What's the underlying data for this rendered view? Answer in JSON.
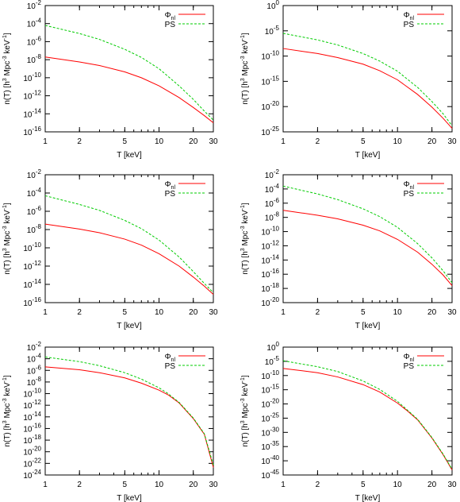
{
  "chart_data": [
    {
      "type": "line",
      "xlabel": "T [keV]",
      "ylabel": "n(T) [h3 Mpc-3 keV-1]",
      "xscale": "log",
      "yscale": "log",
      "xlim": [
        1,
        30
      ],
      "ylim_exp": [
        -16,
        -2
      ],
      "xticks": [
        1,
        2,
        5,
        10,
        20,
        30
      ],
      "yticks_exp": [
        -16,
        -14,
        -12,
        -10,
        -8,
        -6,
        -4,
        -2
      ],
      "legend": "top-right",
      "series": [
        {
          "name": "Φnl",
          "legend_main": "Φ",
          "legend_sub": "nl",
          "color": "#ff0000",
          "dash": "solid",
          "x": [
            1,
            2,
            3,
            5,
            7,
            10,
            15,
            20,
            25,
            30
          ],
          "y_exp": [
            -7.7,
            -8.25,
            -8.65,
            -9.35,
            -10.0,
            -10.9,
            -12.2,
            -13.3,
            -14.2,
            -15.0
          ]
        },
        {
          "name": "PS",
          "legend_main": "PS",
          "legend_sub": "",
          "color": "#00cc00",
          "dash": "dashed",
          "x": [
            1,
            2,
            3,
            5,
            7,
            10,
            15,
            20,
            25,
            30
          ],
          "y_exp": [
            -4.2,
            -5.1,
            -5.75,
            -6.85,
            -7.75,
            -9.0,
            -10.9,
            -12.4,
            -13.7,
            -14.7
          ]
        }
      ]
    },
    {
      "type": "line",
      "xlabel": "T [keV]",
      "ylabel": "n(T) [h3 Mpc-3 keV-1]",
      "xscale": "log",
      "yscale": "log",
      "xlim": [
        1,
        30
      ],
      "ylim_exp": [
        -25,
        0
      ],
      "xticks": [
        1,
        2,
        5,
        10,
        20,
        30
      ],
      "yticks_exp": [
        -25,
        -20,
        -15,
        -10,
        -5,
        0
      ],
      "legend": "top-right",
      "series": [
        {
          "name": "Φnl",
          "legend_main": "Φ",
          "legend_sub": "nl",
          "color": "#ff0000",
          "dash": "solid",
          "x": [
            1,
            2,
            3,
            5,
            7,
            10,
            15,
            20,
            25,
            30
          ],
          "y_exp": [
            -8.5,
            -9.5,
            -10.3,
            -11.6,
            -12.9,
            -14.7,
            -17.6,
            -20.1,
            -22.3,
            -24.3
          ]
        },
        {
          "name": "PS",
          "legend_main": "PS",
          "legend_sub": "",
          "color": "#00cc00",
          "dash": "dashed",
          "x": [
            1,
            2,
            3,
            5,
            7,
            10,
            15,
            20,
            25,
            30
          ],
          "y_exp": [
            -5.5,
            -6.8,
            -7.8,
            -9.5,
            -11.0,
            -13.0,
            -16.2,
            -19.0,
            -21.4,
            -23.8
          ]
        }
      ]
    },
    {
      "type": "line",
      "xlabel": "T [keV]",
      "ylabel": "n(T) [h3 Mpc-3 keV-1]",
      "xscale": "log",
      "yscale": "log",
      "xlim": [
        1,
        30
      ],
      "ylim_exp": [
        -16,
        -2
      ],
      "xticks": [
        1,
        2,
        5,
        10,
        20,
        30
      ],
      "yticks_exp": [
        -16,
        -14,
        -12,
        -10,
        -8,
        -6,
        -4,
        -2
      ],
      "legend": "top-right",
      "series": [
        {
          "name": "Φnl",
          "legend_main": "Φ",
          "legend_sub": "nl",
          "color": "#ff0000",
          "dash": "solid",
          "x": [
            1,
            2,
            3,
            5,
            7,
            10,
            15,
            20,
            25,
            30
          ],
          "y_exp": [
            -7.4,
            -7.95,
            -8.35,
            -9.05,
            -9.7,
            -10.65,
            -12.0,
            -13.2,
            -14.2,
            -15.1
          ]
        },
        {
          "name": "PS",
          "legend_main": "PS",
          "legend_sub": "",
          "color": "#00cc00",
          "dash": "dashed",
          "x": [
            1,
            2,
            3,
            5,
            7,
            10,
            15,
            20,
            25,
            30
          ],
          "y_exp": [
            -4.3,
            -5.25,
            -5.9,
            -7.0,
            -7.9,
            -9.15,
            -11.0,
            -12.6,
            -13.9,
            -14.9
          ]
        }
      ]
    },
    {
      "type": "line",
      "xlabel": "T [keV]",
      "ylabel": "n(T) [h3 Mpc-3 keV-1]",
      "xscale": "log",
      "yscale": "log",
      "xlim": [
        1,
        30
      ],
      "ylim_exp": [
        -20,
        -2
      ],
      "xticks": [
        1,
        2,
        5,
        10,
        20,
        30
      ],
      "yticks_exp": [
        -20,
        -18,
        -16,
        -14,
        -12,
        -10,
        -8,
        -6,
        -4,
        -2
      ],
      "legend": "top-right",
      "series": [
        {
          "name": "Φnl",
          "legend_main": "Φ",
          "legend_sub": "nl",
          "color": "#ff0000",
          "dash": "solid",
          "x": [
            1,
            2,
            3,
            5,
            7,
            10,
            15,
            20,
            25,
            30
          ],
          "y_exp": [
            -7.0,
            -7.7,
            -8.2,
            -9.1,
            -9.9,
            -11.1,
            -12.9,
            -14.6,
            -16.1,
            -17.6
          ]
        },
        {
          "name": "PS",
          "legend_main": "PS",
          "legend_sub": "",
          "color": "#00cc00",
          "dash": "dashed",
          "x": [
            1,
            2,
            3,
            5,
            7,
            10,
            15,
            20,
            25,
            30
          ],
          "y_exp": [
            -3.6,
            -4.7,
            -5.5,
            -6.8,
            -7.9,
            -9.4,
            -11.7,
            -13.7,
            -15.5,
            -17.2
          ]
        }
      ]
    },
    {
      "type": "line",
      "xlabel": "T [keV]",
      "ylabel": "n(T) [h3 Mpc-3 keV-1]",
      "xscale": "log",
      "yscale": "log",
      "xlim": [
        1,
        30
      ],
      "ylim_exp": [
        -24,
        -2
      ],
      "xticks": [
        1,
        2,
        5,
        10,
        20,
        30
      ],
      "yticks_exp": [
        -24,
        -22,
        -20,
        -18,
        -16,
        -14,
        -12,
        -10,
        -8,
        -6,
        -4,
        -2
      ],
      "legend": "top-right",
      "series": [
        {
          "name": "Φnl",
          "legend_main": "Φ",
          "legend_sub": "nl",
          "color": "#ff0000",
          "dash": "solid",
          "x": [
            1,
            2,
            3,
            5,
            7,
            10,
            12,
            15,
            20,
            25,
            30
          ],
          "y_exp": [
            -5.4,
            -5.9,
            -6.4,
            -7.3,
            -8.2,
            -9.4,
            -10.2,
            -11.6,
            -14.3,
            -17.0,
            -22.7
          ]
        },
        {
          "name": "PS",
          "legend_main": "PS",
          "legend_sub": "",
          "color": "#00cc00",
          "dash": "dashed",
          "x": [
            1,
            2,
            3,
            5,
            7,
            10,
            12,
            15,
            20,
            25,
            30
          ],
          "y_exp": [
            -3.7,
            -4.5,
            -5.2,
            -6.4,
            -7.5,
            -9.0,
            -10.0,
            -11.5,
            -14.2,
            -16.9,
            -22.3
          ]
        }
      ]
    },
    {
      "type": "line",
      "xlabel": "T [keV]",
      "ylabel": "n(T) [h3 Mpc-3 keV-1]",
      "xscale": "log",
      "yscale": "log",
      "xlim": [
        1,
        30
      ],
      "ylim_exp": [
        -45,
        0
      ],
      "xticks": [
        1,
        2,
        5,
        10,
        20,
        30
      ],
      "yticks_exp": [
        -45,
        -40,
        -35,
        -30,
        -25,
        -20,
        -15,
        -10,
        -5,
        0
      ],
      "legend": "top-right",
      "series": [
        {
          "name": "Φnl",
          "legend_main": "Φ",
          "legend_sub": "nl",
          "color": "#ff0000",
          "dash": "solid",
          "x": [
            1,
            2,
            3,
            5,
            7,
            10,
            12,
            15,
            20,
            25,
            30
          ],
          "y_exp": [
            -7.5,
            -9.0,
            -10.5,
            -13.2,
            -15.8,
            -19.7,
            -22.2,
            -25.6,
            -32.0,
            -37.8,
            -43.2
          ]
        },
        {
          "name": "PS",
          "legend_main": "PS",
          "legend_sub": "",
          "color": "#00cc00",
          "dash": "dashed",
          "x": [
            1,
            2,
            3,
            5,
            7,
            10,
            12,
            15,
            20,
            25,
            30
          ],
          "y_exp": [
            -4.8,
            -6.9,
            -8.6,
            -11.9,
            -14.9,
            -19.1,
            -21.9,
            -25.4,
            -31.8,
            -37.6,
            -43.0
          ]
        }
      ]
    }
  ]
}
